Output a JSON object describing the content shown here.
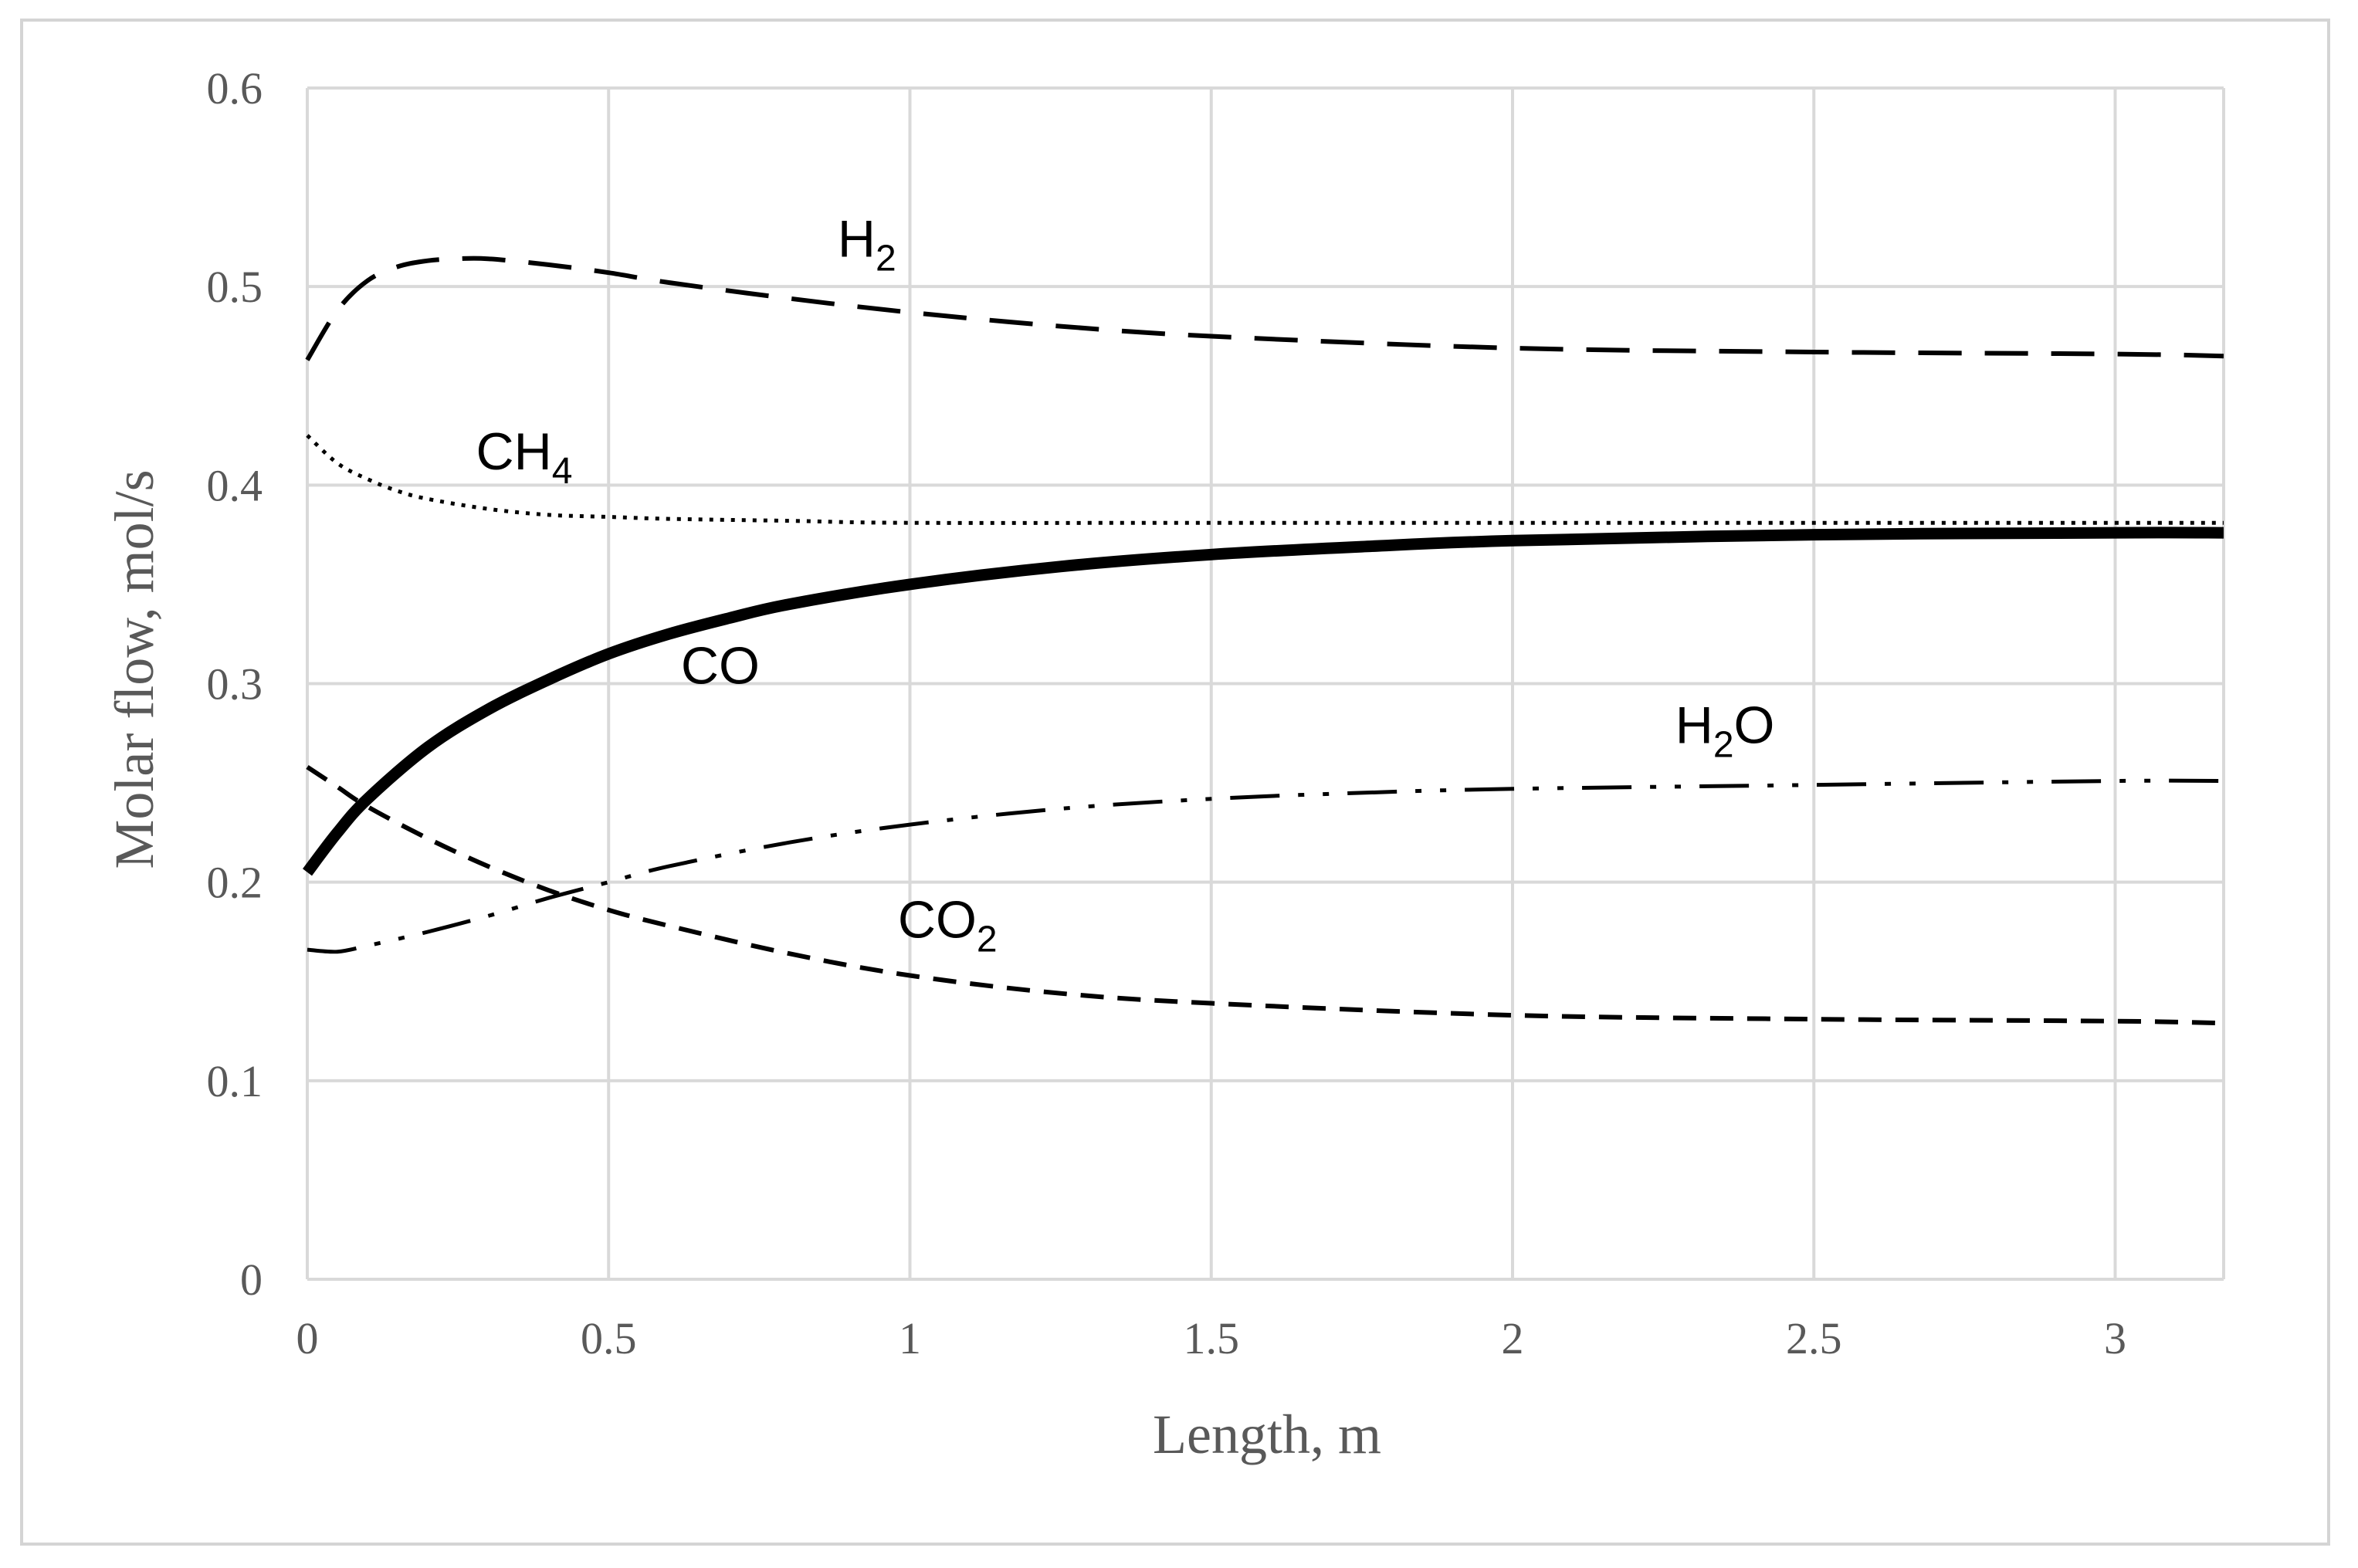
{
  "chart_data": {
    "type": "line",
    "title": "",
    "xlabel": "Length, m",
    "ylabel": "Molar flow, mol/s",
    "xlim": [
      0,
      3.18
    ],
    "ylim": [
      0,
      0.6
    ],
    "grid": true,
    "x_ticks": [
      "0",
      "0.5",
      "1",
      "1.5",
      "2",
      "2.5",
      "3"
    ],
    "y_ticks": [
      "0",
      "0.1",
      "0.2",
      "0.3",
      "0.4",
      "0.5",
      "0.6"
    ],
    "x_tick_values": [
      0,
      0.5,
      1,
      1.5,
      2,
      2.5,
      3
    ],
    "y_tick_values": [
      0,
      0.1,
      0.2,
      0.3,
      0.4,
      0.5,
      0.6
    ],
    "colors": {
      "line": "#000000",
      "grid": "#d9d9d9",
      "text": "#595959",
      "frame": "#d4d4d4"
    },
    "series": [
      {
        "name": "H2",
        "label_main": "H",
        "label_sub": "2",
        "label_tail": "",
        "dash": "long",
        "label_at": [
          0.88,
          0.515
        ],
        "x": [
          0,
          0.05,
          0.1,
          0.15,
          0.2,
          0.25,
          0.3,
          0.4,
          0.5,
          0.6,
          0.8,
          1.0,
          1.25,
          1.5,
          2.0,
          2.5,
          3.0,
          3.18
        ],
        "y": [
          0.463,
          0.488,
          0.503,
          0.51,
          0.513,
          0.514,
          0.514,
          0.511,
          0.507,
          0.502,
          0.494,
          0.487,
          0.48,
          0.475,
          0.469,
          0.467,
          0.466,
          0.465
        ]
      },
      {
        "name": "CH4",
        "label_main": "CH",
        "label_sub": "4",
        "label_tail": "",
        "dash": "dot",
        "label_at": [
          0.28,
          0.408
        ],
        "x": [
          0,
          0.05,
          0.1,
          0.15,
          0.2,
          0.3,
          0.4,
          0.5,
          0.6,
          0.8,
          1.0,
          1.5,
          2.0,
          2.5,
          3.0,
          3.18
        ],
        "y": [
          0.425,
          0.411,
          0.403,
          0.397,
          0.393,
          0.388,
          0.385,
          0.384,
          0.383,
          0.382,
          0.381,
          0.381,
          0.381,
          0.381,
          0.381,
          0.381
        ]
      },
      {
        "name": "CO",
        "label_main": "CO",
        "label_sub": "",
        "label_tail": "",
        "dash": "solid",
        "label_at": [
          0.62,
          0.3
        ],
        "x": [
          0,
          0.05,
          0.1,
          0.2,
          0.3,
          0.4,
          0.5,
          0.6,
          0.7,
          0.8,
          1.0,
          1.25,
          1.5,
          1.75,
          2.0,
          2.5,
          3.0,
          3.18
        ],
        "y": [
          0.205,
          0.225,
          0.242,
          0.268,
          0.287,
          0.302,
          0.315,
          0.325,
          0.333,
          0.34,
          0.35,
          0.359,
          0.365,
          0.369,
          0.372,
          0.375,
          0.376,
          0.376
        ]
      },
      {
        "name": "H2O",
        "label_main": "H",
        "label_sub": "2",
        "label_tail": "O",
        "dash": "dashdotdot",
        "label_at": [
          2.27,
          0.27
        ],
        "x": [
          0,
          0.05,
          0.1,
          0.2,
          0.3,
          0.4,
          0.5,
          0.6,
          0.8,
          1.0,
          1.25,
          1.5,
          1.75,
          2.0,
          2.5,
          3.0,
          3.18
        ],
        "y": [
          0.166,
          0.165,
          0.168,
          0.175,
          0.183,
          0.192,
          0.2,
          0.208,
          0.22,
          0.229,
          0.237,
          0.242,
          0.245,
          0.247,
          0.249,
          0.251,
          0.251
        ]
      },
      {
        "name": "CO2",
        "label_main": "CO",
        "label_sub": "2",
        "label_tail": "",
        "dash": "short",
        "label_at": [
          0.98,
          0.172
        ],
        "x": [
          0,
          0.05,
          0.1,
          0.2,
          0.3,
          0.4,
          0.5,
          0.6,
          0.8,
          1.0,
          1.25,
          1.5,
          2.0,
          2.5,
          3.0,
          3.18
        ],
        "y": [
          0.258,
          0.248,
          0.238,
          0.222,
          0.208,
          0.196,
          0.186,
          0.178,
          0.164,
          0.153,
          0.144,
          0.139,
          0.133,
          0.131,
          0.13,
          0.129
        ]
      }
    ]
  }
}
